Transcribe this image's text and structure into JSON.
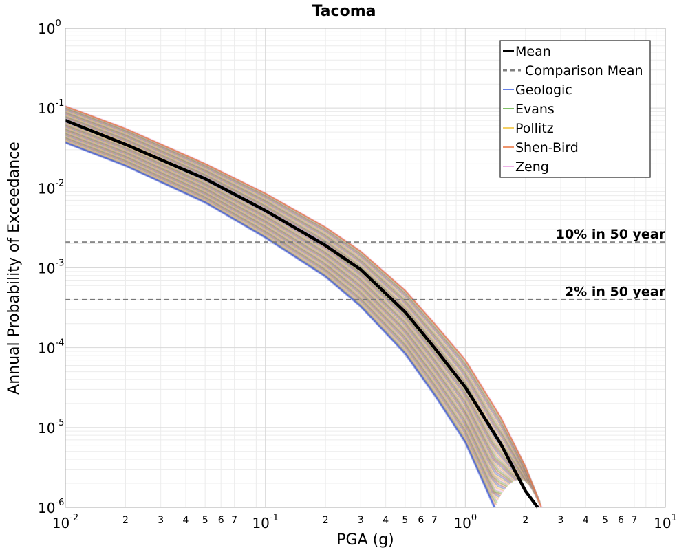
{
  "chart_data": {
    "type": "line",
    "title": "Tacoma",
    "xlabel": "PGA (g)",
    "ylabel": "Annual Probability of Exceedance",
    "x_scale": "log",
    "y_scale": "log",
    "xlim": [
      0.01,
      10
    ],
    "ylim": [
      1e-06,
      1
    ],
    "grid": true,
    "x_major_ticks": [
      {
        "base": "10",
        "exp": "-2",
        "value": 0.01
      },
      {
        "base": "10",
        "exp": "-1",
        "value": 0.1
      },
      {
        "base": "10",
        "exp": "0",
        "value": 1
      },
      {
        "base": "10",
        "exp": "1",
        "value": 10
      }
    ],
    "x_minor_labels": [
      "2",
      "3",
      "4",
      "5",
      "6",
      "7"
    ],
    "y_major_ticks": [
      {
        "base": "10",
        "exp": "0",
        "value": 1
      },
      {
        "base": "10",
        "exp": "-1",
        "value": 0.1
      },
      {
        "base": "10",
        "exp": "-2",
        "value": 0.01
      },
      {
        "base": "10",
        "exp": "-3",
        "value": 0.001
      },
      {
        "base": "10",
        "exp": "-4",
        "value": 0.0001
      },
      {
        "base": "10",
        "exp": "-5",
        "value": 1e-05
      },
      {
        "base": "10",
        "exp": "-6",
        "value": 1e-06
      }
    ],
    "legend_position": "top-right",
    "legend": [
      {
        "label": "Mean",
        "color": "#000000",
        "style": "solid-thick"
      },
      {
        "label": "Comparison Mean",
        "color": "#808080",
        "style": "dashed"
      },
      {
        "label": "Geologic",
        "color": "#3355dd",
        "style": "solid"
      },
      {
        "label": "Evans",
        "color": "#55aa33",
        "style": "solid"
      },
      {
        "label": "Pollitz",
        "color": "#f0c030",
        "style": "solid"
      },
      {
        "label": "Shen-Bird",
        "color": "#e8703a",
        "style": "solid"
      },
      {
        "label": "Zeng",
        "color": "#e899e0",
        "style": "solid"
      }
    ],
    "reference_lines": [
      {
        "label": "10% in 50 year",
        "y": 0.0021
      },
      {
        "label": "2% in 50 year",
        "y": 0.0004
      }
    ],
    "mean_curve": {
      "x": [
        0.01,
        0.02,
        0.05,
        0.1,
        0.2,
        0.3,
        0.5,
        0.7,
        1.0,
        1.5,
        2.0,
        2.3
      ],
      "y": [
        0.07,
        0.035,
        0.013,
        0.0052,
        0.0019,
        0.00095,
        0.00028,
        0.0001,
        3.2e-05,
        6.3e-06,
        1.6e-06,
        1e-06
      ]
    },
    "band_upper": {
      "x": [
        0.01,
        0.02,
        0.05,
        0.1,
        0.2,
        0.3,
        0.5,
        0.7,
        1.0,
        1.5,
        2.0,
        2.4
      ],
      "y": [
        0.105,
        0.055,
        0.02,
        0.0085,
        0.0032,
        0.0016,
        0.00052,
        0.0002,
        7e-05,
        1.35e-05,
        3.2e-06,
        1e-06
      ]
    },
    "band_lower": {
      "x": [
        0.01,
        0.02,
        0.05,
        0.1,
        0.2,
        0.3,
        0.5,
        0.7,
        1.0,
        1.4
      ],
      "y": [
        0.037,
        0.019,
        0.0066,
        0.0024,
        0.00078,
        0.00033,
        8.5e-05,
        2.6e-05,
        6.6e-06,
        1e-06
      ]
    }
  }
}
